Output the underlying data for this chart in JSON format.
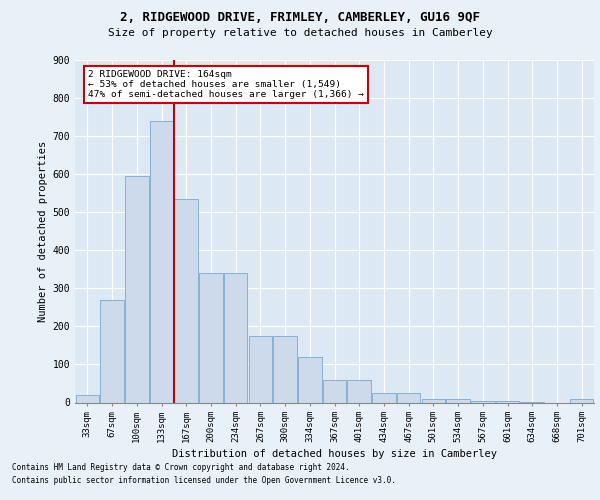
{
  "title_line1": "2, RIDGEWOOD DRIVE, FRIMLEY, CAMBERLEY, GU16 9QF",
  "title_line2": "Size of property relative to detached houses in Camberley",
  "xlabel": "Distribution of detached houses by size in Camberley",
  "ylabel": "Number of detached properties",
  "categories": [
    "33sqm",
    "67sqm",
    "100sqm",
    "133sqm",
    "167sqm",
    "200sqm",
    "234sqm",
    "267sqm",
    "300sqm",
    "334sqm",
    "367sqm",
    "401sqm",
    "434sqm",
    "467sqm",
    "501sqm",
    "534sqm",
    "567sqm",
    "601sqm",
    "634sqm",
    "668sqm",
    "701sqm"
  ],
  "values": [
    20,
    270,
    595,
    740,
    535,
    340,
    340,
    175,
    175,
    120,
    60,
    60,
    25,
    25,
    10,
    10,
    5,
    5,
    2,
    0,
    10
  ],
  "bar_color": "#ccdaeb",
  "bar_edge_color": "#7aaace",
  "vline_index": 3.5,
  "vline_color": "#cc0000",
  "annotation_text": "2 RIDGEWOOD DRIVE: 164sqm\n← 53% of detached houses are smaller (1,549)\n47% of semi-detached houses are larger (1,366) →",
  "ylim_max": 900,
  "yticks": [
    0,
    100,
    200,
    300,
    400,
    500,
    600,
    700,
    800,
    900
  ],
  "footer_line1": "Contains HM Land Registry data © Crown copyright and database right 2024.",
  "footer_line2": "Contains public sector information licensed under the Open Government Licence v3.0.",
  "bg_color": "#dce8f4",
  "fig_bg_color": "#e8f0f8"
}
